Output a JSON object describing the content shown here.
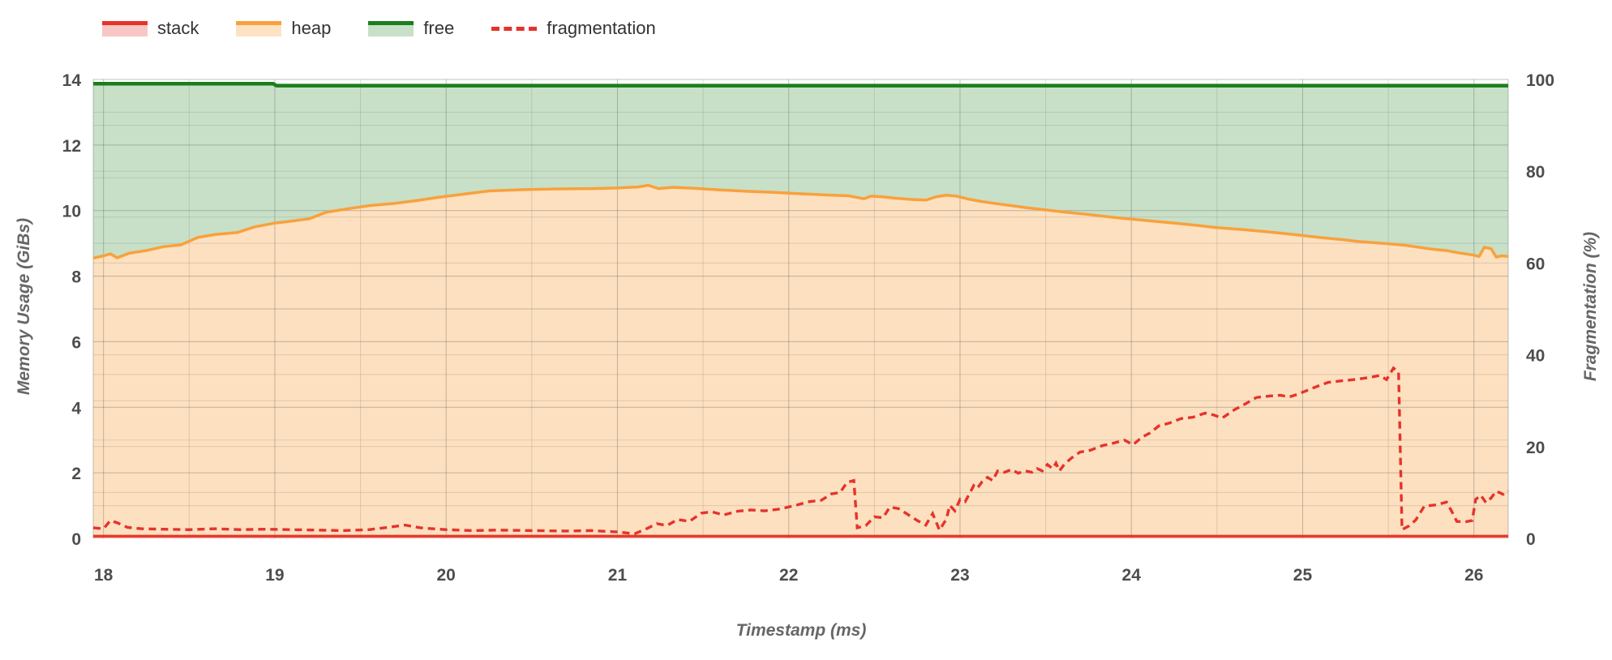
{
  "legend": {
    "items": [
      {
        "label": "stack",
        "type": "area",
        "color": "#e5332c",
        "fill": "rgba(229,51,44,0.28)"
      },
      {
        "label": "heap",
        "type": "area",
        "color": "#f8a13c",
        "fill": "rgba(248,161,60,0.30)"
      },
      {
        "label": "free",
        "type": "area",
        "color": "#1b7e1b",
        "fill": "rgba(27,126,27,0.24)"
      },
      {
        "label": "fragmentation",
        "type": "dash",
        "color": "#e5332c",
        "fill": "none"
      }
    ]
  },
  "chart_data": {
    "type": "area",
    "x_axis": {
      "title": "Timestamp (ms)",
      "range": [
        17.94,
        26.2
      ],
      "ticks": [
        18,
        19,
        20,
        21,
        22,
        23,
        24,
        25,
        26
      ],
      "minor_step": 0.5
    },
    "y_left": {
      "title": "Memory Usage (GiBs)",
      "range": [
        0,
        14
      ],
      "ticks": [
        0,
        2,
        4,
        6,
        8,
        10,
        12,
        14
      ],
      "grid_step": 1
    },
    "y_right": {
      "title": "Fragmentation (%)",
      "range": [
        0,
        100
      ],
      "ticks": [
        0,
        20,
        40,
        60,
        80,
        100
      ],
      "grid_step": 10
    },
    "colors": {
      "stack_line": "#e5332c",
      "stack_fill": "rgba(229,51,44,0.28)",
      "heap_line": "#f8a13c",
      "heap_fill": "rgba(248,161,60,0.33)",
      "free_line": "#1b7e1b",
      "free_fill": "rgba(27,126,27,0.24)",
      "frag_line": "#e5332c",
      "grid_minor": "rgba(102,102,102,0.20)",
      "grid_major": "rgba(102,102,102,0.40)",
      "tick_text": "#4d4d4d",
      "title_text": "#666666"
    },
    "series": [
      {
        "name": "stack",
        "axis": "left",
        "style": "solid",
        "points": [
          [
            17.94,
            0.07
          ],
          [
            26.2,
            0.07
          ]
        ]
      },
      {
        "name": "heap",
        "axis": "left",
        "style": "solid",
        "points": [
          [
            17.94,
            8.55
          ],
          [
            18.0,
            8.62
          ],
          [
            18.04,
            8.68
          ],
          [
            18.08,
            8.56
          ],
          [
            18.15,
            8.7
          ],
          [
            18.25,
            8.78
          ],
          [
            18.35,
            8.9
          ],
          [
            18.45,
            8.95
          ],
          [
            18.55,
            9.18
          ],
          [
            18.65,
            9.27
          ],
          [
            18.78,
            9.33
          ],
          [
            18.88,
            9.5
          ],
          [
            19.0,
            9.62
          ],
          [
            19.1,
            9.68
          ],
          [
            19.2,
            9.75
          ],
          [
            19.3,
            9.95
          ],
          [
            19.42,
            10.05
          ],
          [
            19.55,
            10.15
          ],
          [
            19.7,
            10.22
          ],
          [
            19.82,
            10.3
          ],
          [
            19.95,
            10.4
          ],
          [
            20.1,
            10.5
          ],
          [
            20.25,
            10.6
          ],
          [
            20.45,
            10.64
          ],
          [
            20.65,
            10.66
          ],
          [
            20.85,
            10.67
          ],
          [
            21.0,
            10.69
          ],
          [
            21.12,
            10.72
          ],
          [
            21.18,
            10.77
          ],
          [
            21.24,
            10.67
          ],
          [
            21.32,
            10.71
          ],
          [
            21.45,
            10.68
          ],
          [
            21.6,
            10.63
          ],
          [
            21.75,
            10.59
          ],
          [
            21.9,
            10.56
          ],
          [
            22.05,
            10.52
          ],
          [
            22.2,
            10.48
          ],
          [
            22.35,
            10.45
          ],
          [
            22.44,
            10.36
          ],
          [
            22.48,
            10.44
          ],
          [
            22.55,
            10.42
          ],
          [
            22.62,
            10.38
          ],
          [
            22.72,
            10.34
          ],
          [
            22.8,
            10.32
          ],
          [
            22.86,
            10.42
          ],
          [
            22.92,
            10.47
          ],
          [
            22.98,
            10.44
          ],
          [
            23.05,
            10.35
          ],
          [
            23.12,
            10.28
          ],
          [
            23.2,
            10.22
          ],
          [
            23.3,
            10.15
          ],
          [
            23.4,
            10.08
          ],
          [
            23.5,
            10.02
          ],
          [
            23.62,
            9.95
          ],
          [
            23.75,
            9.88
          ],
          [
            23.88,
            9.8
          ],
          [
            24.0,
            9.74
          ],
          [
            24.12,
            9.68
          ],
          [
            24.25,
            9.62
          ],
          [
            24.38,
            9.55
          ],
          [
            24.5,
            9.48
          ],
          [
            24.65,
            9.42
          ],
          [
            24.8,
            9.35
          ],
          [
            24.95,
            9.27
          ],
          [
            25.1,
            9.18
          ],
          [
            25.22,
            9.12
          ],
          [
            25.32,
            9.06
          ],
          [
            25.42,
            9.02
          ],
          [
            25.52,
            8.98
          ],
          [
            25.6,
            8.94
          ],
          [
            25.68,
            8.88
          ],
          [
            25.76,
            8.82
          ],
          [
            25.84,
            8.78
          ],
          [
            25.9,
            8.72
          ],
          [
            25.95,
            8.68
          ],
          [
            26.0,
            8.64
          ],
          [
            26.03,
            8.6
          ],
          [
            26.06,
            8.88
          ],
          [
            26.1,
            8.84
          ],
          [
            26.13,
            8.58
          ],
          [
            26.16,
            8.62
          ],
          [
            26.2,
            8.6
          ]
        ]
      },
      {
        "name": "free",
        "axis": "left",
        "style": "solid",
        "points": [
          [
            17.94,
            13.87
          ],
          [
            18.99,
            13.87
          ],
          [
            19.01,
            13.81
          ],
          [
            26.2,
            13.81
          ]
        ]
      },
      {
        "name": "fragmentation",
        "axis": "right",
        "style": "dashed",
        "points": [
          [
            17.94,
            2.3
          ],
          [
            18.0,
            2.1
          ],
          [
            18.04,
            3.9
          ],
          [
            18.08,
            3.4
          ],
          [
            18.14,
            2.4
          ],
          [
            18.22,
            2.1
          ],
          [
            18.35,
            2.0
          ],
          [
            18.5,
            1.9
          ],
          [
            18.65,
            2.1
          ],
          [
            18.8,
            1.9
          ],
          [
            18.95,
            2.0
          ],
          [
            19.1,
            1.9
          ],
          [
            19.25,
            1.8
          ],
          [
            19.4,
            1.7
          ],
          [
            19.55,
            1.9
          ],
          [
            19.68,
            2.5
          ],
          [
            19.76,
            2.9
          ],
          [
            19.85,
            2.3
          ],
          [
            20.0,
            1.9
          ],
          [
            20.15,
            1.7
          ],
          [
            20.3,
            1.8
          ],
          [
            20.5,
            1.7
          ],
          [
            20.7,
            1.6
          ],
          [
            20.85,
            1.7
          ],
          [
            21.0,
            1.4
          ],
          [
            21.1,
            1.0
          ],
          [
            21.17,
            2.1
          ],
          [
            21.23,
            3.2
          ],
          [
            21.29,
            2.8
          ],
          [
            21.35,
            4.1
          ],
          [
            21.42,
            3.7
          ],
          [
            21.49,
            5.5
          ],
          [
            21.55,
            5.8
          ],
          [
            21.62,
            5.1
          ],
          [
            21.7,
            5.9
          ],
          [
            21.78,
            6.2
          ],
          [
            21.86,
            6.0
          ],
          [
            21.95,
            6.4
          ],
          [
            22.05,
            7.3
          ],
          [
            22.12,
            8.0
          ],
          [
            22.19,
            8.3
          ],
          [
            22.25,
            9.7
          ],
          [
            22.3,
            10.0
          ],
          [
            22.34,
            12.2
          ],
          [
            22.38,
            12.6
          ],
          [
            22.4,
            2.3
          ],
          [
            22.45,
            2.8
          ],
          [
            22.5,
            4.7
          ],
          [
            22.55,
            4.5
          ],
          [
            22.59,
            6.8
          ],
          [
            22.64,
            6.5
          ],
          [
            22.7,
            5.1
          ],
          [
            22.75,
            3.9
          ],
          [
            22.8,
            2.9
          ],
          [
            22.84,
            5.4
          ],
          [
            22.88,
            1.8
          ],
          [
            22.92,
            4.2
          ],
          [
            22.94,
            7.2
          ],
          [
            22.97,
            6.0
          ],
          [
            23.0,
            8.5
          ],
          [
            23.03,
            8.0
          ],
          [
            23.06,
            10.1
          ],
          [
            23.08,
            11.5
          ],
          [
            23.1,
            10.9
          ],
          [
            23.13,
            12.4
          ],
          [
            23.16,
            13.3
          ],
          [
            23.19,
            12.6
          ],
          [
            23.22,
            14.7
          ],
          [
            23.26,
            14.4
          ],
          [
            23.3,
            15.0
          ],
          [
            23.34,
            14.2
          ],
          [
            23.38,
            14.7
          ],
          [
            23.42,
            14.4
          ],
          [
            23.45,
            15.2
          ],
          [
            23.48,
            14.7
          ],
          [
            23.51,
            16.1
          ],
          [
            23.54,
            15.2
          ],
          [
            23.56,
            16.4
          ],
          [
            23.58,
            14.7
          ],
          [
            23.61,
            16.2
          ],
          [
            23.65,
            17.5
          ],
          [
            23.7,
            18.8
          ],
          [
            23.76,
            19.2
          ],
          [
            23.83,
            20.2
          ],
          [
            23.9,
            20.8
          ],
          [
            23.96,
            21.4
          ],
          [
            24.01,
            20.4
          ],
          [
            24.06,
            22.0
          ],
          [
            24.11,
            23.0
          ],
          [
            24.16,
            24.5
          ],
          [
            24.22,
            25.1
          ],
          [
            24.29,
            26.1
          ],
          [
            24.36,
            26.4
          ],
          [
            24.43,
            27.3
          ],
          [
            24.48,
            26.9
          ],
          [
            24.53,
            26.2
          ],
          [
            24.6,
            28.0
          ],
          [
            24.67,
            29.4
          ],
          [
            24.73,
            30.7
          ],
          [
            24.8,
            31.0
          ],
          [
            24.87,
            31.2
          ],
          [
            24.92,
            30.8
          ],
          [
            24.97,
            31.4
          ],
          [
            25.03,
            32.3
          ],
          [
            25.09,
            33.2
          ],
          [
            25.15,
            34.0
          ],
          [
            25.22,
            34.3
          ],
          [
            25.3,
            34.6
          ],
          [
            25.38,
            35.0
          ],
          [
            25.45,
            35.5
          ],
          [
            25.49,
            34.6
          ],
          [
            25.53,
            37.1
          ],
          [
            25.56,
            36.3
          ],
          [
            25.58,
            1.9
          ],
          [
            25.62,
            2.7
          ],
          [
            25.66,
            4.0
          ],
          [
            25.71,
            7.0
          ],
          [
            25.78,
            7.3
          ],
          [
            25.84,
            7.9
          ],
          [
            25.87,
            5.9
          ],
          [
            25.9,
            3.7
          ],
          [
            25.95,
            3.6
          ],
          [
            25.99,
            3.9
          ],
          [
            26.01,
            8.5
          ],
          [
            26.04,
            9.4
          ],
          [
            26.07,
            7.8
          ],
          [
            26.1,
            8.8
          ],
          [
            26.13,
            10.3
          ],
          [
            26.17,
            9.6
          ],
          [
            26.2,
            10.4
          ]
        ]
      }
    ]
  }
}
